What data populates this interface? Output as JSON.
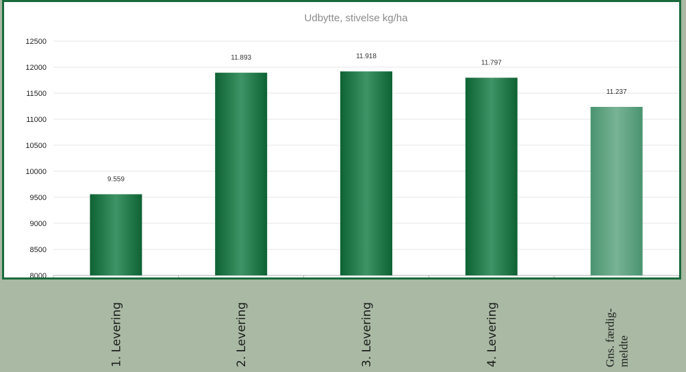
{
  "chart_data": {
    "type": "bar",
    "title": "Udbytte, stivelse kg/ha",
    "xlabel": "",
    "ylabel": "",
    "ylim": [
      8000,
      12500
    ],
    "yticks": [
      8000,
      8500,
      9000,
      9500,
      10000,
      10500,
      11000,
      11500,
      12000,
      12500
    ],
    "categories": [
      "1. Levering",
      "2. Levering",
      "3. Levering",
      "4. Levering",
      "Gns. færdig-meldte"
    ],
    "category_lines": [
      [
        "1. Levering"
      ],
      [
        "2. Levering"
      ],
      [
        "3. Levering"
      ],
      [
        "4. Levering"
      ],
      [
        "Gns. færdig-",
        "meldte"
      ]
    ],
    "values": [
      9559,
      11893,
      11918,
      11797,
      11237
    ],
    "data_labels": [
      "9.559",
      "11.893",
      "11.918",
      "11.797",
      "11.237"
    ],
    "grid": true,
    "legend": "none",
    "colors": {
      "bar": "#1f7a48",
      "bar_light": "#5a9e79",
      "frame_border": "#1a6a3c",
      "page_background": "#a9b9a3"
    }
  }
}
